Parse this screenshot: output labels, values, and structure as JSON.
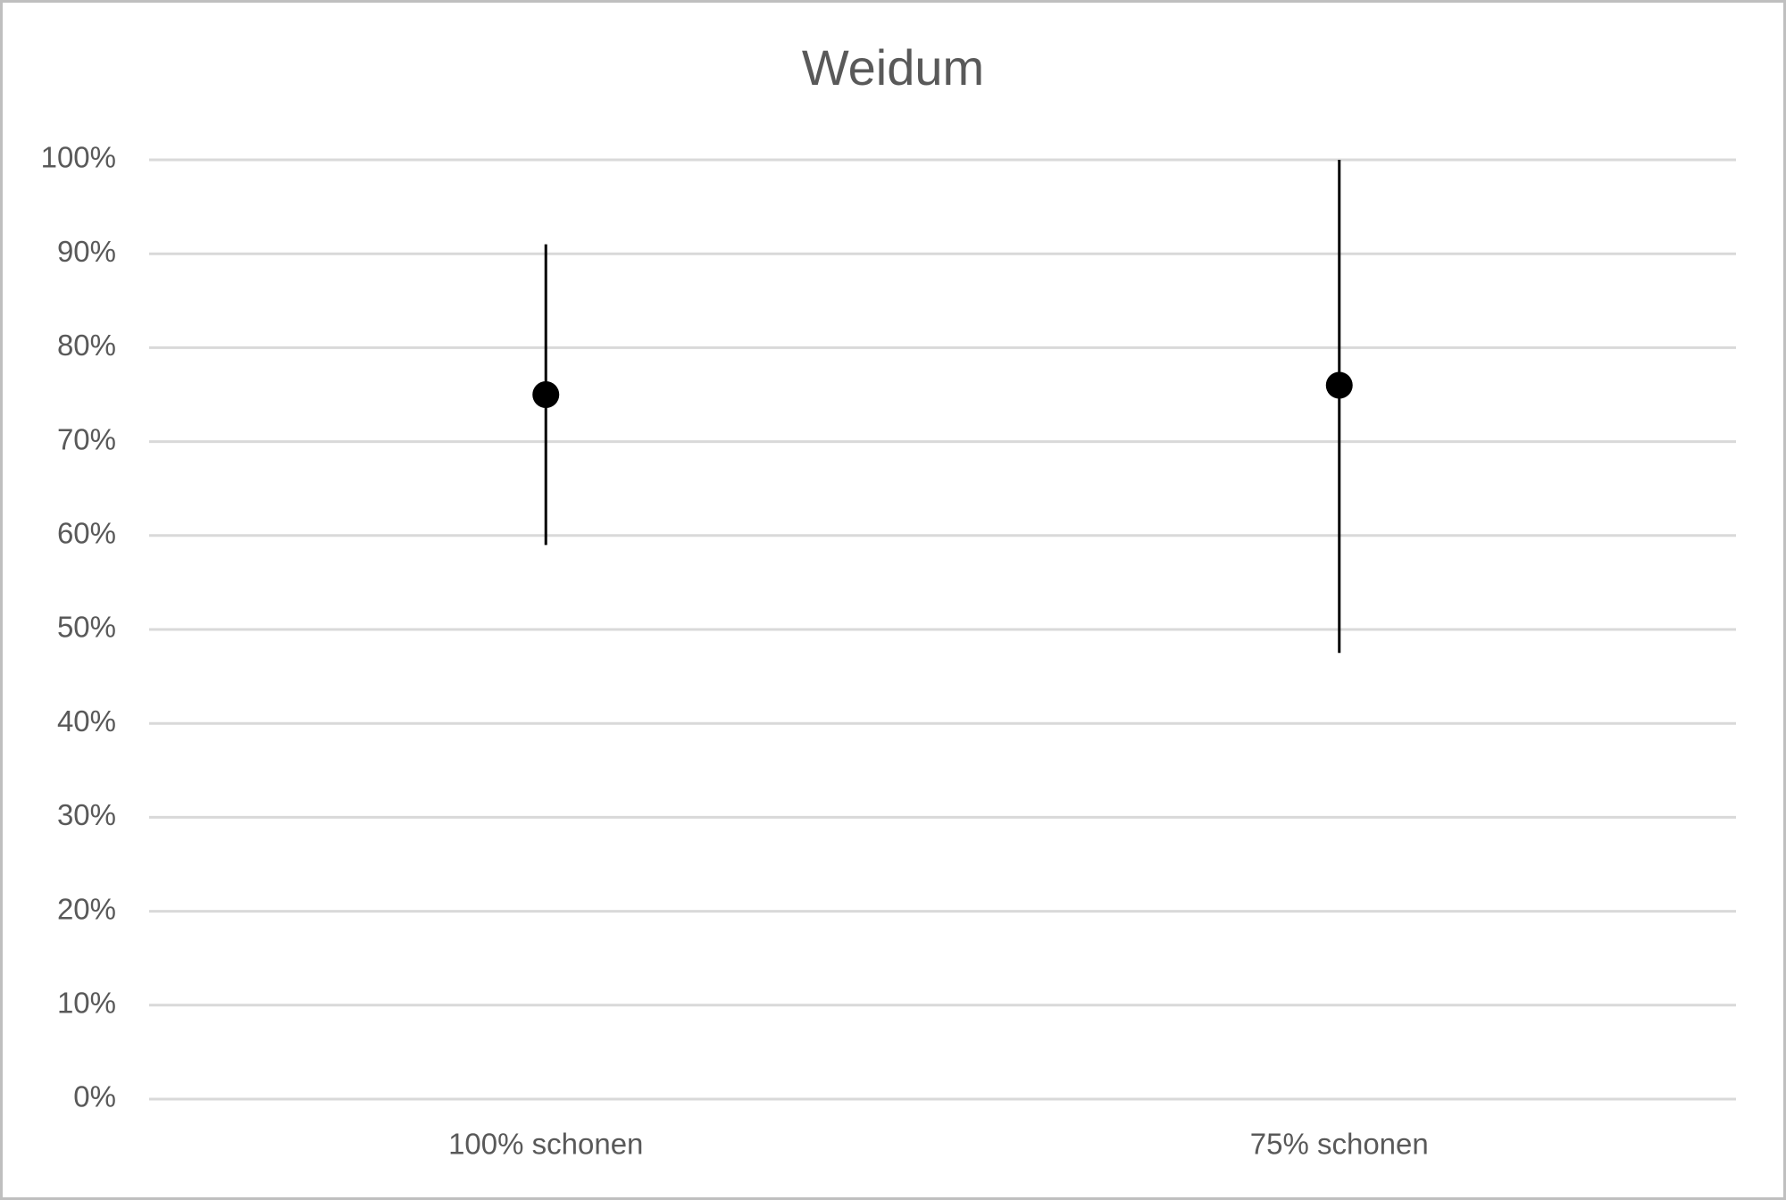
{
  "chart_data": {
    "type": "errorbar_dot",
    "title": "Weidum",
    "categories": [
      "100% schonen",
      "75% schonen"
    ],
    "values": [
      75,
      76
    ],
    "lower": [
      59,
      47.5
    ],
    "upper": [
      91,
      100
    ],
    "color": "#000000",
    "ylim": [
      0,
      100
    ],
    "yticks": [
      {
        "value": 0,
        "label": "0%"
      },
      {
        "value": 10,
        "label": "10%"
      },
      {
        "value": 20,
        "label": "20%"
      },
      {
        "value": 30,
        "label": "30%"
      },
      {
        "value": 40,
        "label": "40%"
      },
      {
        "value": 50,
        "label": "50%"
      },
      {
        "value": 60,
        "label": "60%"
      },
      {
        "value": 70,
        "label": "70%"
      },
      {
        "value": 80,
        "label": "80%"
      },
      {
        "value": 90,
        "label": "90%"
      },
      {
        "value": 100,
        "label": "100%"
      }
    ],
    "grid": true
  }
}
